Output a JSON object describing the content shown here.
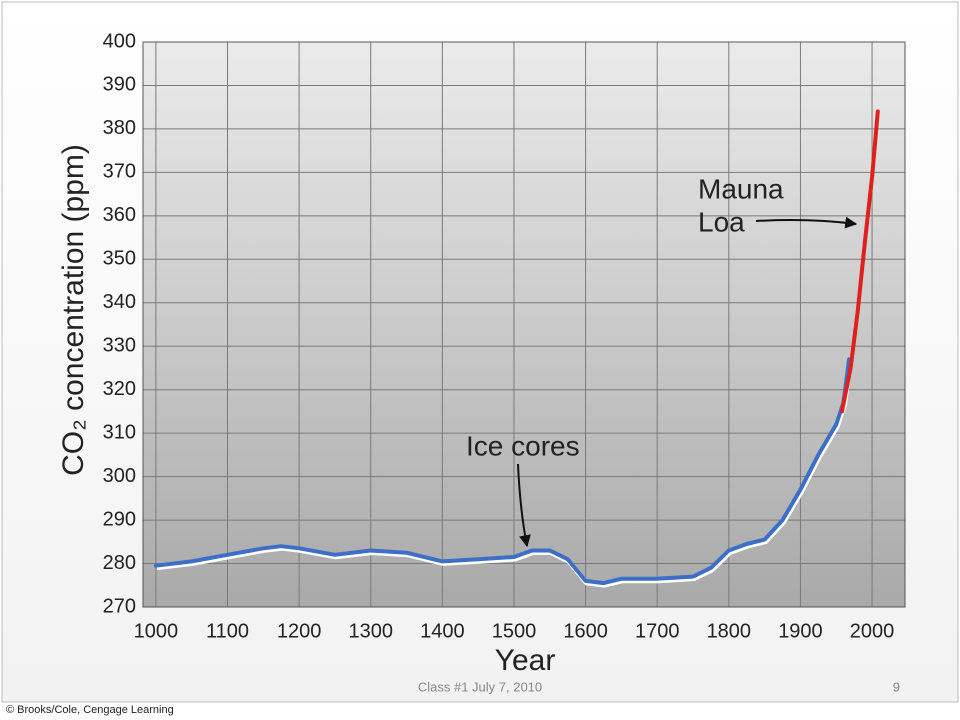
{
  "chart_data": {
    "type": "line",
    "x_label": "Year",
    "y_label": "CO₂ concentration (ppm)",
    "xlim": [
      982,
      2046
    ],
    "ylim": [
      270,
      400
    ],
    "xticks": [
      1000,
      1100,
      1200,
      1300,
      1400,
      1500,
      1600,
      1700,
      1800,
      1900,
      2000
    ],
    "yticks": [
      270,
      280,
      290,
      300,
      310,
      320,
      330,
      340,
      350,
      360,
      370,
      380,
      390,
      400
    ],
    "grid": true,
    "series": [
      {
        "name": "Ice cores",
        "color": "#3d6fc6",
        "x": [
          1000,
          1050,
          1100,
          1150,
          1175,
          1200,
          1250,
          1300,
          1350,
          1400,
          1450,
          1500,
          1525,
          1550,
          1575,
          1600,
          1625,
          1650,
          1700,
          1750,
          1775,
          1800,
          1825,
          1850,
          1875,
          1900,
          1925,
          1950,
          1960,
          1968
        ],
        "values": [
          279.5,
          280.5,
          282,
          283.5,
          284,
          283.5,
          282,
          283,
          282.5,
          280.5,
          281,
          281.5,
          283,
          283,
          281,
          276,
          275.5,
          276.5,
          276.5,
          277,
          279,
          283,
          284.5,
          285.5,
          290,
          297,
          305,
          312,
          317,
          327
        ]
      },
      {
        "name": "Mauna Loa",
        "color": "#e0201c",
        "x": [
          1958,
          1970,
          1980,
          1990,
          2000,
          2008
        ],
        "values": [
          315,
          325,
          338,
          354,
          369,
          384
        ]
      }
    ],
    "annotations": {
      "mauna_loa": [
        "Mauna",
        "Loa"
      ],
      "ice_cores": "Ice cores"
    }
  },
  "footer": {
    "slide_note": "Class #1 July 7, 2010",
    "page_number": "9",
    "credit": "© Brooks/Cole, Cengage Learning"
  }
}
